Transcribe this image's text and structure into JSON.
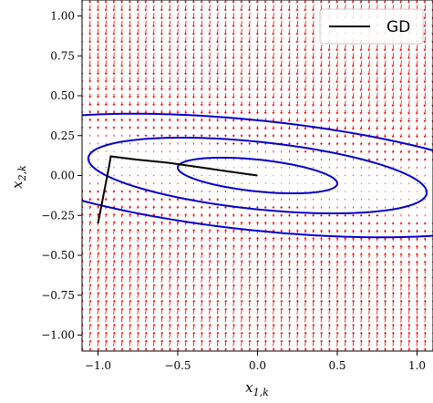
{
  "chart_data": {
    "type": "line",
    "title": "",
    "xlabel": "x_{1,k}",
    "ylabel": "x_{2,k}",
    "xlim": [
      -1.1,
      1.1
    ],
    "ylim": [
      -1.1,
      1.1
    ],
    "xticks": [
      -1.0,
      -0.5,
      0.0,
      0.5,
      1.0
    ],
    "xtick_labels": [
      "−1.0",
      "−0.5",
      "0.0",
      "0.5",
      "1.0"
    ],
    "yticks": [
      1.0,
      0.75,
      0.5,
      0.25,
      0.0,
      -0.25,
      -0.5,
      -0.75,
      -1.0
    ],
    "ytick_labels": [
      "1.00",
      "0.75",
      "0.50",
      "0.25",
      "0.00",
      "−0.25",
      "−0.50",
      "−0.75",
      "−1.00"
    ],
    "grid": false,
    "legend": {
      "position": "top-right",
      "entries": [
        "GD"
      ]
    },
    "series": [
      {
        "name": "GD",
        "color": "#000000",
        "x": [
          -1.0,
          -0.93,
          -0.92,
          -0.76,
          -0.56,
          -0.35,
          -0.18,
          0.0
        ],
        "y": [
          -0.3,
          0.06,
          0.12,
          0.1,
          0.08,
          0.05,
          0.025,
          0.0
        ]
      }
    ],
    "contours": {
      "color": "#0000cc",
      "center": [
        0.0,
        0.0
      ],
      "matrix": [
        [
          1.0,
          2.0
        ],
        [
          2.0,
          20.0
        ]
      ],
      "levels": [
        0.1,
        0.45,
        1.2
      ]
    },
    "vector_field": {
      "color": "#ff0000",
      "description_values": {
        "x_range": [
          -1.1,
          1.1
        ],
        "y_range": [
          -1.1,
          1.1
        ],
        "step": 0.05
      }
    }
  }
}
